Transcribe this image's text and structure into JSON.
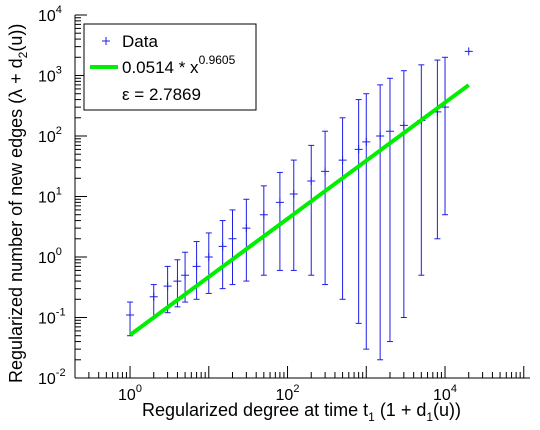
{
  "chart_data": {
    "type": "scatter",
    "title": "",
    "xlabel_text": "Regularized degree at time t",
    "xlabel_sub": "1",
    "xlabel_tail": " (1 + d",
    "xlabel_sub2": "1",
    "xlabel_end": "(u))",
    "ylabel_text": "Regularized number of new edges (λ + d",
    "ylabel_sub": "2",
    "ylabel_end": "(u))",
    "x_scale": "log",
    "y_scale": "log",
    "xlim": [
      0.2,
      120000
    ],
    "ylim": [
      0.01,
      10000
    ],
    "x_ticks": [
      {
        "value": 1,
        "base": "10",
        "exp": "0"
      },
      {
        "value": 100,
        "base": "10",
        "exp": "2"
      },
      {
        "value": 10000,
        "base": "10",
        "exp": "4"
      }
    ],
    "y_ticks": [
      {
        "value": 0.01,
        "base": "10",
        "exp": "-2"
      },
      {
        "value": 0.1,
        "base": "10",
        "exp": "-1"
      },
      {
        "value": 1,
        "base": "10",
        "exp": "0"
      },
      {
        "value": 10,
        "base": "10",
        "exp": "1"
      },
      {
        "value": 100,
        "base": "10",
        "exp": "2"
      },
      {
        "value": 1000,
        "base": "10",
        "exp": "3"
      },
      {
        "value": 10000,
        "base": "10",
        "exp": "4"
      }
    ],
    "legend": {
      "position": "top-left",
      "entries": [
        {
          "label": "Data",
          "kind": "marker"
        },
        {
          "label_base": "0.0514 * x",
          "label_exp": "0.9605",
          "kind": "line"
        },
        {
          "label": "ε = 2.7869",
          "kind": "text"
        }
      ]
    },
    "series": [
      {
        "name": "Data",
        "color": "#1e1ee6",
        "marker": "+",
        "points": [
          {
            "x": 1,
            "y": 0.11,
            "lo": 0.05,
            "hi": 0.18
          },
          {
            "x": 2,
            "y": 0.22,
            "lo": 0.1,
            "hi": 0.35
          },
          {
            "x": 3,
            "y": 0.33,
            "lo": 0.12,
            "hi": 0.7
          },
          {
            "x": 4,
            "y": 0.4,
            "lo": 0.15,
            "hi": 0.9
          },
          {
            "x": 5,
            "y": 0.5,
            "lo": 0.18,
            "hi": 1.2
          },
          {
            "x": 7,
            "y": 0.7,
            "lo": 0.2,
            "hi": 1.8
          },
          {
            "x": 10,
            "y": 1.0,
            "lo": 0.25,
            "hi": 2.5
          },
          {
            "x": 15,
            "y": 1.5,
            "lo": 0.3,
            "hi": 4
          },
          {
            "x": 20,
            "y": 2.0,
            "lo": 0.35,
            "hi": 6
          },
          {
            "x": 30,
            "y": 3.0,
            "lo": 0.4,
            "hi": 9
          },
          {
            "x": 50,
            "y": 5.0,
            "lo": 0.5,
            "hi": 15
          },
          {
            "x": 80,
            "y": 8.0,
            "lo": 0.6,
            "hi": 25
          },
          {
            "x": 120,
            "y": 11,
            "lo": 0.6,
            "hi": 40
          },
          {
            "x": 200,
            "y": 18,
            "lo": 0.5,
            "hi": 70
          },
          {
            "x": 300,
            "y": 26,
            "lo": 0.35,
            "hi": 120
          },
          {
            "x": 500,
            "y": 40,
            "lo": 0.2,
            "hi": 200
          },
          {
            "x": 800,
            "y": 60,
            "lo": 0.08,
            "hi": 400
          },
          {
            "x": 1000,
            "y": 80,
            "lo": 0.03,
            "hi": 500
          },
          {
            "x": 1500,
            "y": 100,
            "lo": 0.02,
            "hi": 700
          },
          {
            "x": 2000,
            "y": 120,
            "lo": 0.04,
            "hi": 900
          },
          {
            "x": 3000,
            "y": 150,
            "lo": 0.1,
            "hi": 1200
          },
          {
            "x": 5000,
            "y": 180,
            "lo": 0.5,
            "hi": 1500
          },
          {
            "x": 8000,
            "y": 250,
            "lo": 2,
            "hi": 1800
          },
          {
            "x": 10000,
            "y": 300,
            "lo": 5,
            "hi": 2000
          },
          {
            "x": 20000,
            "y": 2500,
            "lo": 2500,
            "hi": 2500
          }
        ]
      },
      {
        "name": "0.0514 * x^0.9605",
        "color": "#00ee00",
        "type": "line",
        "a": 0.0514,
        "b": 0.9605,
        "x_range": [
          1,
          20000
        ]
      }
    ],
    "grid": false
  }
}
